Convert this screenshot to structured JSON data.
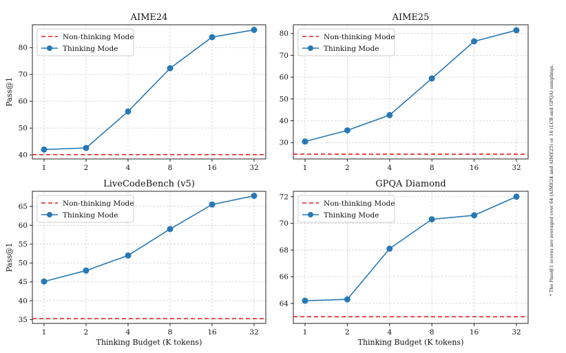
{
  "footnote": "* The Pass@1 scores are averaged over 64 (AIME24 and AIME25) or 16 (LCB and GPQA) samplings.",
  "colors": {
    "thinking": "#2878b5",
    "nonthinking": "#e41a1c",
    "grid": "#d0d0d0"
  },
  "chart_data": [
    {
      "type": "line",
      "title": "AIME24",
      "xlabel": "",
      "ylabel": "Pass@1",
      "categories": [
        "1",
        "2",
        "4",
        "8",
        "16",
        "32"
      ],
      "ylim": [
        38.5,
        88.5
      ],
      "yticks": [
        40,
        50,
        60,
        70,
        80
      ],
      "grid": true,
      "legend": "top-left",
      "series": [
        {
          "name": "Non-thinking Mode",
          "style": "dashed-line",
          "values": [
            40.1,
            40.1,
            40.1,
            40.1,
            40.1,
            40.1
          ]
        },
        {
          "name": "Thinking Mode",
          "style": "line-markers",
          "values": [
            42.0,
            42.6,
            56.2,
            72.3,
            83.9,
            86.6
          ]
        }
      ]
    },
    {
      "type": "line",
      "title": "AIME25",
      "xlabel": "",
      "ylabel": "",
      "categories": [
        "1",
        "2",
        "4",
        "8",
        "16",
        "32"
      ],
      "ylim": [
        22.5,
        84
      ],
      "yticks": [
        30,
        40,
        50,
        60,
        70,
        80
      ],
      "grid": true,
      "legend": "top-left",
      "series": [
        {
          "name": "Non-thinking Mode",
          "style": "dashed-line",
          "values": [
            24.7,
            24.7,
            24.7,
            24.7,
            24.7,
            24.7
          ]
        },
        {
          "name": "Thinking Mode",
          "style": "line-markers",
          "values": [
            30.5,
            35.6,
            42.6,
            59.4,
            76.4,
            81.5
          ]
        }
      ]
    },
    {
      "type": "line",
      "title": "LiveCodeBench (v5)",
      "xlabel": "Thinking Budget (K tokens)",
      "ylabel": "Pass@1",
      "categories": [
        "1",
        "2",
        "4",
        "8",
        "16",
        "32"
      ],
      "ylim": [
        34,
        69
      ],
      "yticks": [
        35,
        40,
        45,
        50,
        55,
        60,
        65
      ],
      "grid": true,
      "legend": "top-left",
      "series": [
        {
          "name": "Non-thinking Mode",
          "style": "dashed-line",
          "values": [
            35.3,
            35.3,
            35.3,
            35.3,
            35.3,
            35.3
          ]
        },
        {
          "name": "Thinking Mode",
          "style": "line-markers",
          "values": [
            45.1,
            48.0,
            52.0,
            59.0,
            65.5,
            67.8
          ]
        }
      ]
    },
    {
      "type": "line",
      "title": "GPQA Diamond",
      "xlabel": "Thinking Budget (K tokens)",
      "ylabel": "",
      "categories": [
        "1",
        "2",
        "4",
        "8",
        "16",
        "32"
      ],
      "ylim": [
        62.5,
        72.4
      ],
      "yticks": [
        64,
        66,
        68,
        70,
        72
      ],
      "grid": true,
      "legend": "top-left",
      "series": [
        {
          "name": "Non-thinking Mode",
          "style": "dashed-line",
          "values": [
            63.0,
            63.0,
            63.0,
            63.0,
            63.0,
            63.0
          ]
        },
        {
          "name": "Thinking Mode",
          "style": "line-markers",
          "values": [
            64.2,
            64.3,
            68.1,
            70.3,
            70.6,
            72.0
          ]
        }
      ]
    }
  ]
}
